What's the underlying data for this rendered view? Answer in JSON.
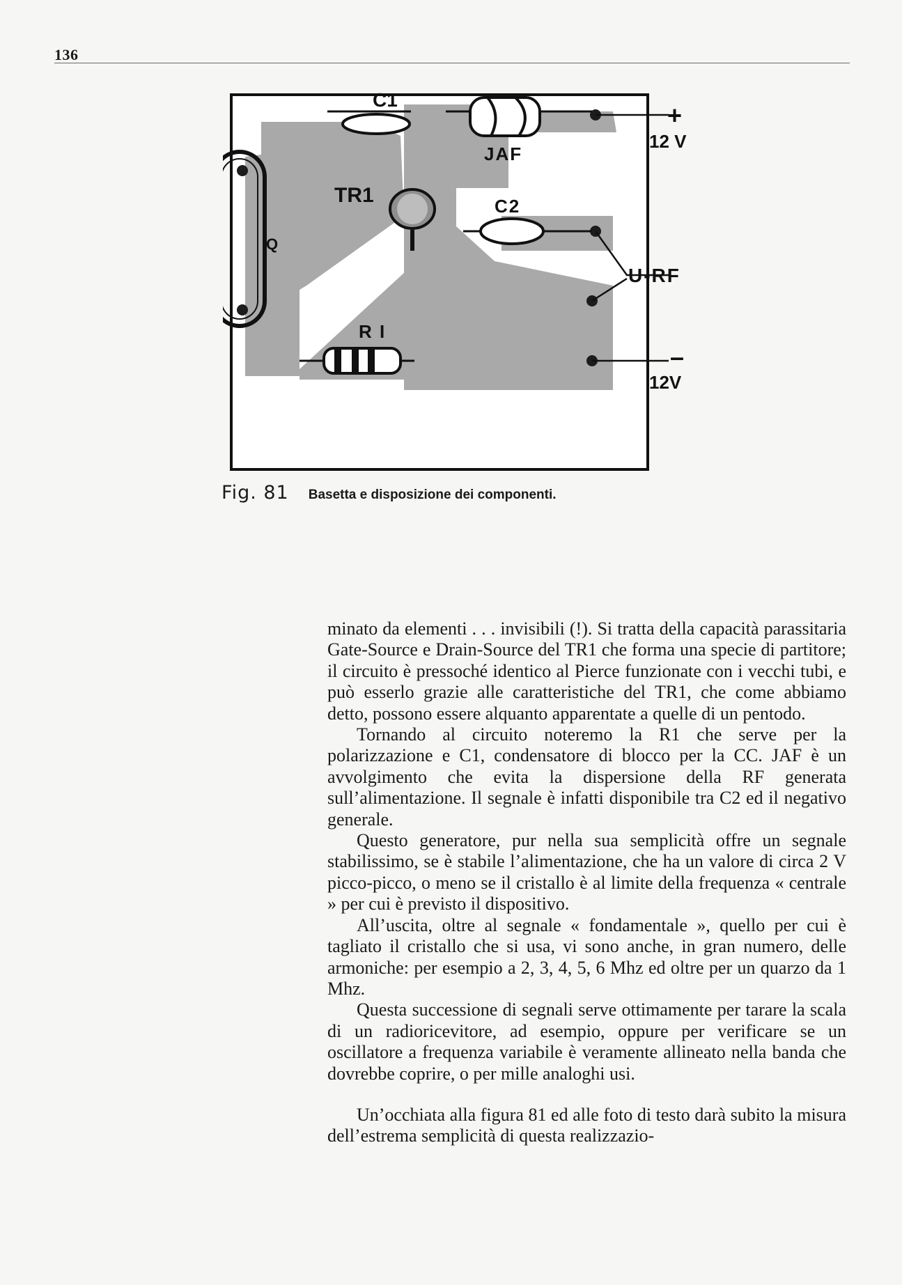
{
  "page": {
    "number": "136"
  },
  "figure": {
    "labels": {
      "c1": "C1",
      "jaf": "JAF",
      "tr1": "TR1",
      "c2": "C2",
      "q": "Q",
      "r1": "R I",
      "plus": "+",
      "plus_voltage": "12 V",
      "output": "U-RF",
      "minus": "–",
      "minus_voltage": "12V"
    },
    "caption_label": "Fig. 81",
    "caption_text": "Basetta e disposizione dei componenti."
  },
  "body": {
    "paragraphs": [
      "minato da elementi . . . invisibili (!). Si tratta della capacità parassitaria Gate-Source e Drain-Source del TR1 che forma una specie di partitore; il circuito è pressoché identico al Pierce funzionate con i vecchi tubi, e può esserlo grazie alle caratteristiche del TR1, che come abbiamo detto, possono essere alquanto apparentate a quelle di un pentodo.",
      "Tornando al circuito noteremo la R1 che serve per la polarizzazione e C1, condensatore di blocco per la CC. JAF è un avvolgimento che evita la dispersione della RF generata sull’alimentazione. Il segnale è infatti disponibile tra C2 ed il negativo generale.",
      "Questo generatore, pur nella sua semplicità offre un segnale stabilissimo, se è stabile l’alimentazione, che ha un valore di circa 2 V picco-picco, o meno se il cristallo è al limite della frequenza « centrale » per cui è previsto il dispositivo.",
      "All’uscita, oltre al segnale « fondamentale », quello per cui è tagliato il cristallo che si usa, vi sono anche, in gran numero, delle armoniche: per esempio a 2, 3, 4, 5, 6 Mhz ed oltre per un quarzo da 1 Mhz.",
      "Questa successione di segnali serve ottimamente per tarare la scala di un radioricevitore, ad esempio, oppure per verificare se un oscillatore a frequenza variabile è veramente allineato nella banda che dovrebbe coprire, o per mille analoghi usi.",
      "Un’occhiata alla figura 81 ed alle foto di testo darà subito la misura dell’estrema semplicità di questa realizzazio-"
    ]
  }
}
